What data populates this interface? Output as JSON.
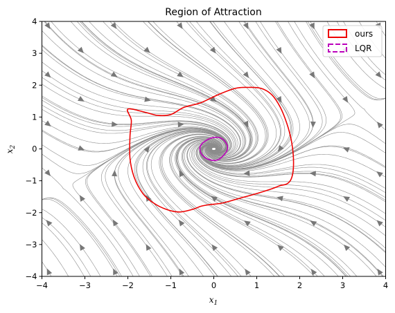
{
  "chart_data": {
    "type": "line",
    "title": "Region of Attraction",
    "xlabel": "x",
    "xlabel_sub": "1",
    "ylabel": "x",
    "ylabel_sub": "2",
    "xlim": [
      -4,
      4
    ],
    "ylim": [
      -4,
      4
    ],
    "xticks": [
      -4,
      -3,
      -2,
      -1,
      0,
      1,
      2,
      3,
      4
    ],
    "yticks": [
      -4,
      -3,
      -2,
      -1,
      0,
      1,
      2,
      3,
      4
    ],
    "grid": false,
    "legend_position": "top-right",
    "background": "streamplot of the closed-loop vector field (gray)",
    "colors": {
      "ours": "#ee0000",
      "lqr": "#bb00bb",
      "stream": "#8c8c8c",
      "arrow": "#777777"
    },
    "series": [
      {
        "name": "ours",
        "style": "solid",
        "x": [
          -2.0,
          -1.6,
          -1.3,
          -1.0,
          -0.7,
          -0.3,
          0.1,
          0.5,
          0.8,
          1.1,
          1.35,
          1.55,
          1.7,
          1.8,
          1.85,
          1.85,
          1.8,
          1.7,
          1.55,
          1.35,
          1.0,
          0.6,
          0.2,
          -0.1,
          -0.3,
          -0.5,
          -0.8,
          -1.1,
          -1.4,
          -1.65,
          -1.85,
          -1.95,
          -1.95,
          -1.92,
          -2.0
        ],
        "y": [
          1.25,
          1.15,
          1.05,
          1.08,
          1.3,
          1.45,
          1.7,
          1.9,
          1.93,
          1.9,
          1.7,
          1.3,
          0.8,
          0.3,
          -0.2,
          -0.65,
          -0.95,
          -1.1,
          -1.15,
          -1.25,
          -1.4,
          -1.55,
          -1.7,
          -1.75,
          -1.8,
          -1.9,
          -1.98,
          -1.9,
          -1.7,
          -1.4,
          -0.9,
          -0.3,
          0.4,
          0.9,
          1.25
        ]
      },
      {
        "name": "LQR",
        "style": "dashed",
        "x": [
          0.32,
          0.28,
          0.16,
          0.0,
          -0.16,
          -0.3,
          -0.32,
          -0.25,
          -0.1,
          0.08,
          0.23,
          0.32
        ],
        "y": [
          0.0,
          0.2,
          0.34,
          0.36,
          0.28,
          0.12,
          -0.05,
          -0.22,
          -0.34,
          -0.35,
          -0.2,
          0.0
        ]
      }
    ]
  }
}
